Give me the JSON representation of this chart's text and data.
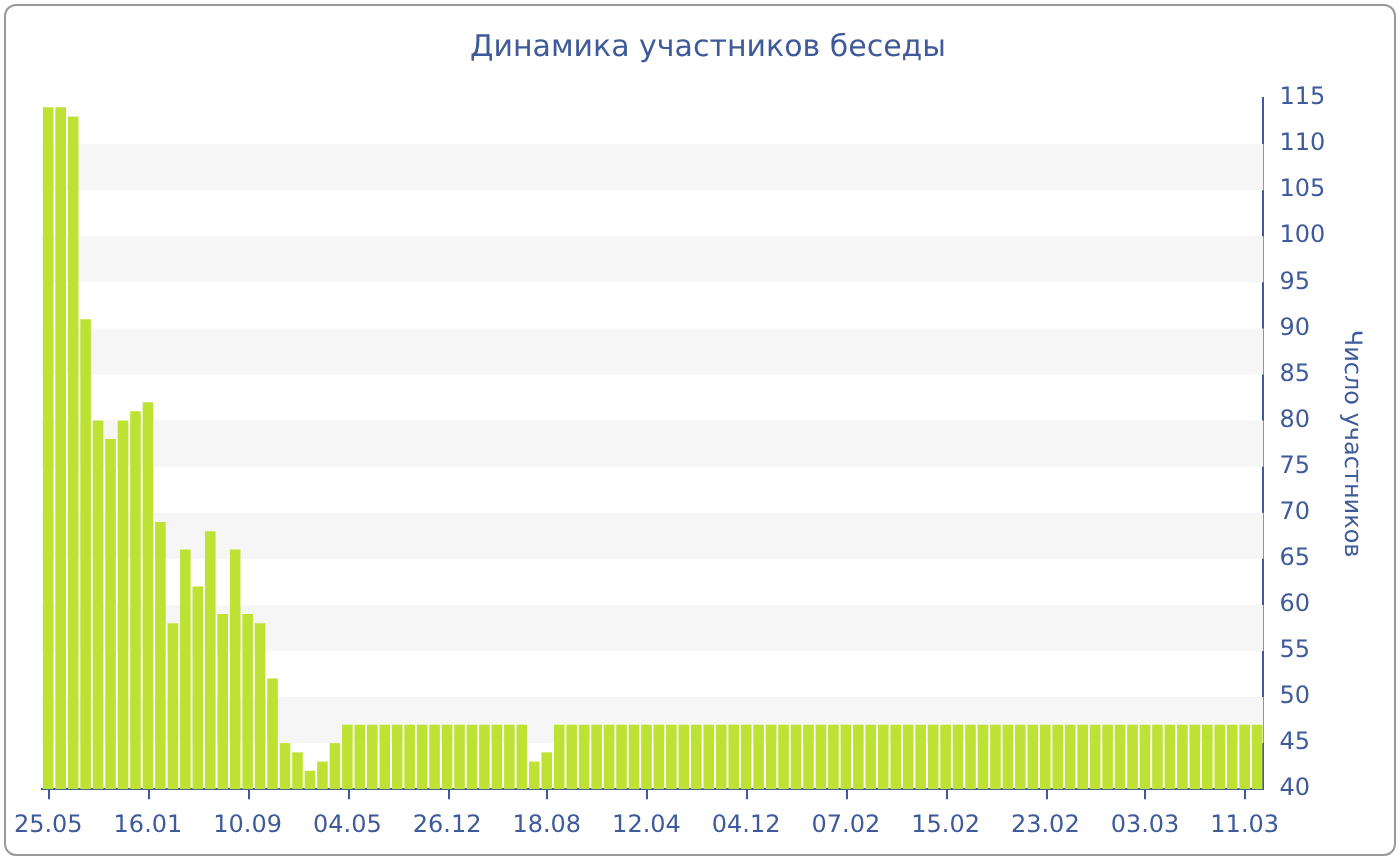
{
  "chart_data": {
    "type": "bar",
    "title": "Динамика участников беседы",
    "ylabel": "Число участников",
    "categories": [
      "25.05",
      null,
      null,
      null,
      null,
      null,
      null,
      null,
      "16.01",
      null,
      null,
      null,
      null,
      null,
      null,
      null,
      "10.09",
      null,
      null,
      null,
      null,
      null,
      null,
      null,
      "04.05",
      null,
      null,
      null,
      null,
      null,
      null,
      null,
      "26.12",
      null,
      null,
      null,
      null,
      null,
      null,
      null,
      "18.08",
      null,
      null,
      null,
      null,
      null,
      null,
      null,
      "12.04",
      null,
      null,
      null,
      null,
      null,
      null,
      null,
      "04.12",
      null,
      null,
      null,
      null,
      null,
      null,
      null,
      "07.02",
      null,
      null,
      null,
      null,
      null,
      null,
      null,
      "15.02",
      null,
      null,
      null,
      null,
      null,
      null,
      null,
      "23.02",
      null,
      null,
      null,
      null,
      null,
      null,
      null,
      "03.03",
      null,
      null,
      null,
      null,
      null,
      null,
      null,
      "11.03",
      null
    ],
    "series": [
      {
        "color": "#bde233",
        "values": [
          114,
          114,
          113,
          91,
          80,
          78,
          80,
          81,
          82,
          69,
          58,
          66,
          62,
          68,
          59,
          66,
          59,
          58,
          52,
          45,
          44,
          42,
          43,
          45,
          47,
          47,
          47,
          47,
          47,
          47,
          47,
          47,
          47,
          47,
          47,
          47,
          47,
          47,
          47,
          43,
          44,
          47,
          47,
          47,
          47,
          47,
          47,
          47,
          47,
          47,
          47,
          47,
          47,
          47,
          47,
          47,
          47,
          47,
          47,
          47,
          47,
          47,
          47,
          47,
          47,
          47,
          47,
          47,
          47,
          47,
          47,
          47,
          47,
          47,
          47,
          47,
          47,
          47,
          47,
          47,
          47,
          47,
          47,
          47,
          47,
          47,
          47,
          47,
          47,
          47,
          47,
          47,
          47,
          47,
          47,
          47,
          47,
          47
        ]
      }
    ],
    "ylim": [
      40,
      115
    ],
    "yticks": [
      40,
      45,
      50,
      55,
      60,
      65,
      70,
      75,
      80,
      85,
      90,
      95,
      100,
      105,
      110,
      115
    ],
    "bands": [
      {
        "axis": "y",
        "from": 45,
        "to": 50,
        "color": "#f6f6f6"
      },
      {
        "axis": "y",
        "from": 55,
        "to": 60,
        "color": "#f6f6f6"
      },
      {
        "axis": "y",
        "from": 65,
        "to": 70,
        "color": "#f6f6f6"
      },
      {
        "axis": "y",
        "from": 75,
        "to": 80,
        "color": "#f6f6f6"
      },
      {
        "axis": "y",
        "from": 85,
        "to": 90,
        "color": "#f6f6f6"
      },
      {
        "axis": "y",
        "from": 95,
        "to": 100,
        "color": "#f6f6f6"
      },
      {
        "axis": "y",
        "from": 105,
        "to": 110,
        "color": "#f6f6f6"
      }
    ],
    "legend": false
  }
}
